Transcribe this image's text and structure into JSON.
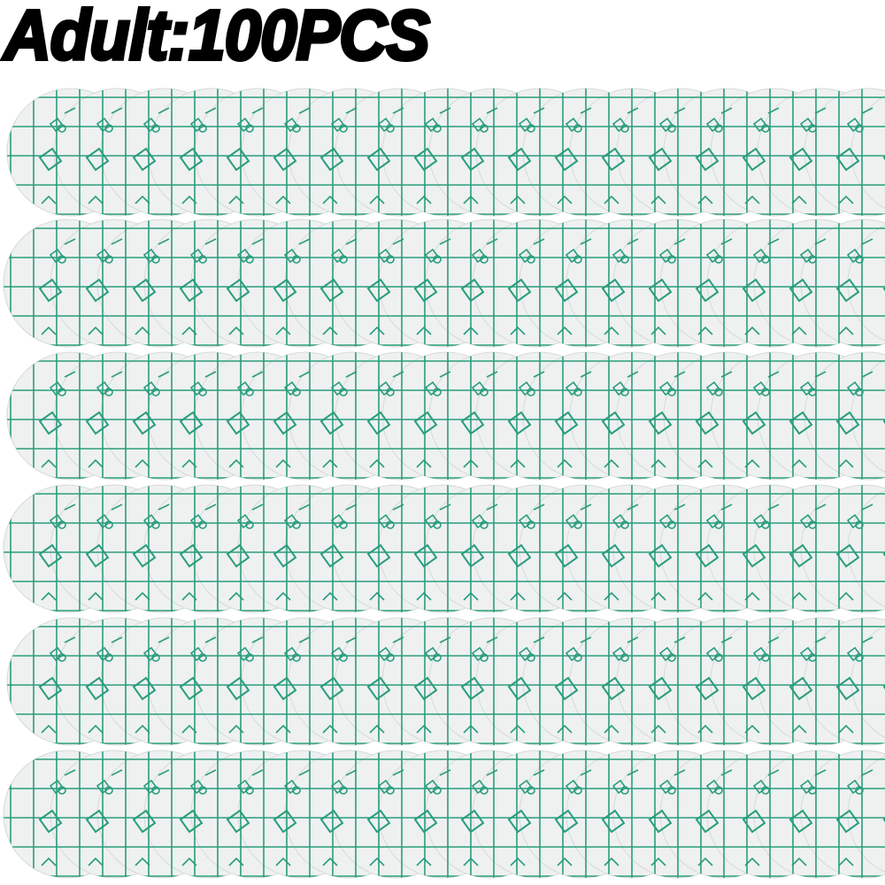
{
  "title": "Adult:100PCS",
  "product": {
    "rows": 6,
    "patches_per_row": 19,
    "colors": {
      "background": "#ffffff",
      "patch_fill": "#eef1f0",
      "patch_edge": "#d5dad8",
      "grid_line": "#2a9d7c",
      "title": "#000000"
    }
  }
}
